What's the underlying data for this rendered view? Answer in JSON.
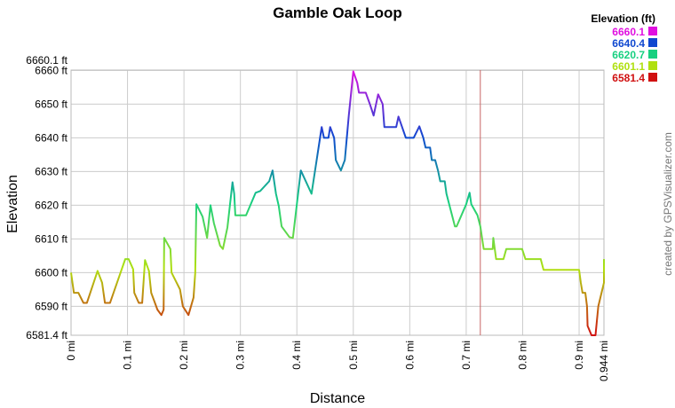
{
  "chart_data": {
    "type": "line",
    "title": "Gamble Oak Loop",
    "xlabel": "Distance",
    "ylabel": "Elevation",
    "credit": "created by GPSVisualizer.com",
    "x": [
      0,
      0.005,
      0.013,
      0.022,
      0.028,
      0.047,
      0.055,
      0.06,
      0.069,
      0.096,
      0.102,
      0.11,
      0.112,
      0.12,
      0.126,
      0.131,
      0.138,
      0.142,
      0.153,
      0.16,
      0.164,
      0.165,
      0.176,
      0.178,
      0.193,
      0.198,
      0.208,
      0.217,
      0.22,
      0.222,
      0.233,
      0.241,
      0.247,
      0.253,
      0.264,
      0.269,
      0.277,
      0.286,
      0.289,
      0.291,
      0.31,
      0.327,
      0.335,
      0.351,
      0.357,
      0.363,
      0.368,
      0.373,
      0.387,
      0.393,
      0.407,
      0.426,
      0.444,
      0.448,
      0.456,
      0.459,
      0.466,
      0.469,
      0.478,
      0.485,
      0.492,
      0.5,
      0.507,
      0.51,
      0.522,
      0.53,
      0.536,
      0.544,
      0.552,
      0.555,
      0.576,
      0.58,
      0.593,
      0.607,
      0.617,
      0.624,
      0.628,
      0.636,
      0.639,
      0.645,
      0.65,
      0.654,
      0.662,
      0.665,
      0.68,
      0.683,
      0.7,
      0.706,
      0.709,
      0.72,
      0.725,
      0.731,
      0.747,
      0.748,
      0.753,
      0.766,
      0.771,
      0.799,
      0.805,
      0.832,
      0.837,
      0.9,
      0.903,
      0.906,
      0.911,
      0.914,
      0.915,
      0.922,
      0.929,
      0.934,
      0.944,
      0.944
    ],
    "series": [
      {
        "values": [
          6600,
          6594,
          6594,
          6591,
          6591,
          6600.5,
          6597,
          6591,
          6591,
          6604,
          6604,
          6601,
          6594,
          6591,
          6591,
          6603.7,
          6600.5,
          6594,
          6589,
          6587.4,
          6589,
          6610.3,
          6607,
          6600,
          6595,
          6590,
          6587.4,
          6592.6,
          6600,
          6620.3,
          6616.6,
          6610.3,
          6620,
          6614.7,
          6608,
          6607,
          6613.4,
          6626.8,
          6623.4,
          6617,
          6617,
          6623.7,
          6624.2,
          6627.1,
          6630.3,
          6623.4,
          6619.7,
          6613.7,
          6610.5,
          6610.3,
          6630.3,
          6623.4,
          6643.2,
          6640,
          6640,
          6643.2,
          6640,
          6633.4,
          6630.3,
          6633.4,
          6646.6,
          6659.7,
          6656.3,
          6653.4,
          6653.4,
          6649.7,
          6646.6,
          6652.9,
          6650,
          6643.2,
          6643.2,
          6646.3,
          6640,
          6640,
          6643.4,
          6640,
          6637.1,
          6637.1,
          6633.4,
          6633.4,
          6630.3,
          6627.1,
          6627.1,
          6623.4,
          6613.7,
          6613.7,
          6620.3,
          6623.7,
          6620.3,
          6617,
          6613.7,
          6607,
          6607,
          6610.3,
          6604,
          6604,
          6607,
          6607,
          6604,
          6604,
          6600.8,
          6600.8,
          6597,
          6594,
          6594,
          6590,
          6584.2,
          6581.4,
          6581.4,
          6590,
          6597,
          6604
        ]
      }
    ],
    "marker_x": 0.725,
    "marker_color": "#c86464",
    "xlim": [
      0,
      0.944
    ],
    "ylim": [
      6581.4,
      6660.1
    ],
    "xticks": [
      {
        "value": 0,
        "label": "0 mi"
      },
      {
        "value": 0.1,
        "label": "0.1 mi"
      },
      {
        "value": 0.2,
        "label": "0.2 mi"
      },
      {
        "value": 0.3,
        "label": "0.3 mi"
      },
      {
        "value": 0.4,
        "label": "0.4 mi"
      },
      {
        "value": 0.5,
        "label": "0.5 mi"
      },
      {
        "value": 0.6,
        "label": "0.6 mi"
      },
      {
        "value": 0.7,
        "label": "0.7 mi"
      },
      {
        "value": 0.8,
        "label": "0.8 mi"
      },
      {
        "value": 0.9,
        "label": "0.9 mi"
      },
      {
        "value": 0.944,
        "label": "0.944 mi"
      }
    ],
    "yticks": [
      {
        "value": 6581.4,
        "label": "6581.4 ft"
      },
      {
        "value": 6590,
        "label": "6590 ft"
      },
      {
        "value": 6600,
        "label": "6600 ft"
      },
      {
        "value": 6610,
        "label": "6610 ft"
      },
      {
        "value": 6620,
        "label": "6620 ft"
      },
      {
        "value": 6630,
        "label": "6630 ft"
      },
      {
        "value": 6640,
        "label": "6640 ft"
      },
      {
        "value": 6650,
        "label": "6650 ft"
      },
      {
        "value": 6660,
        "label": "6660 ft"
      },
      {
        "value": 6660.1,
        "label": "6660.1 ft"
      }
    ],
    "grid": true,
    "legend": {
      "title": "Elevation (ft)",
      "values": [
        6660.1,
        6640.4,
        6620.7,
        6601.1,
        6581.4
      ],
      "colors": [
        "#e010e0",
        "#1048d0",
        "#18d080",
        "#b0e010",
        "#d01010"
      ]
    }
  }
}
